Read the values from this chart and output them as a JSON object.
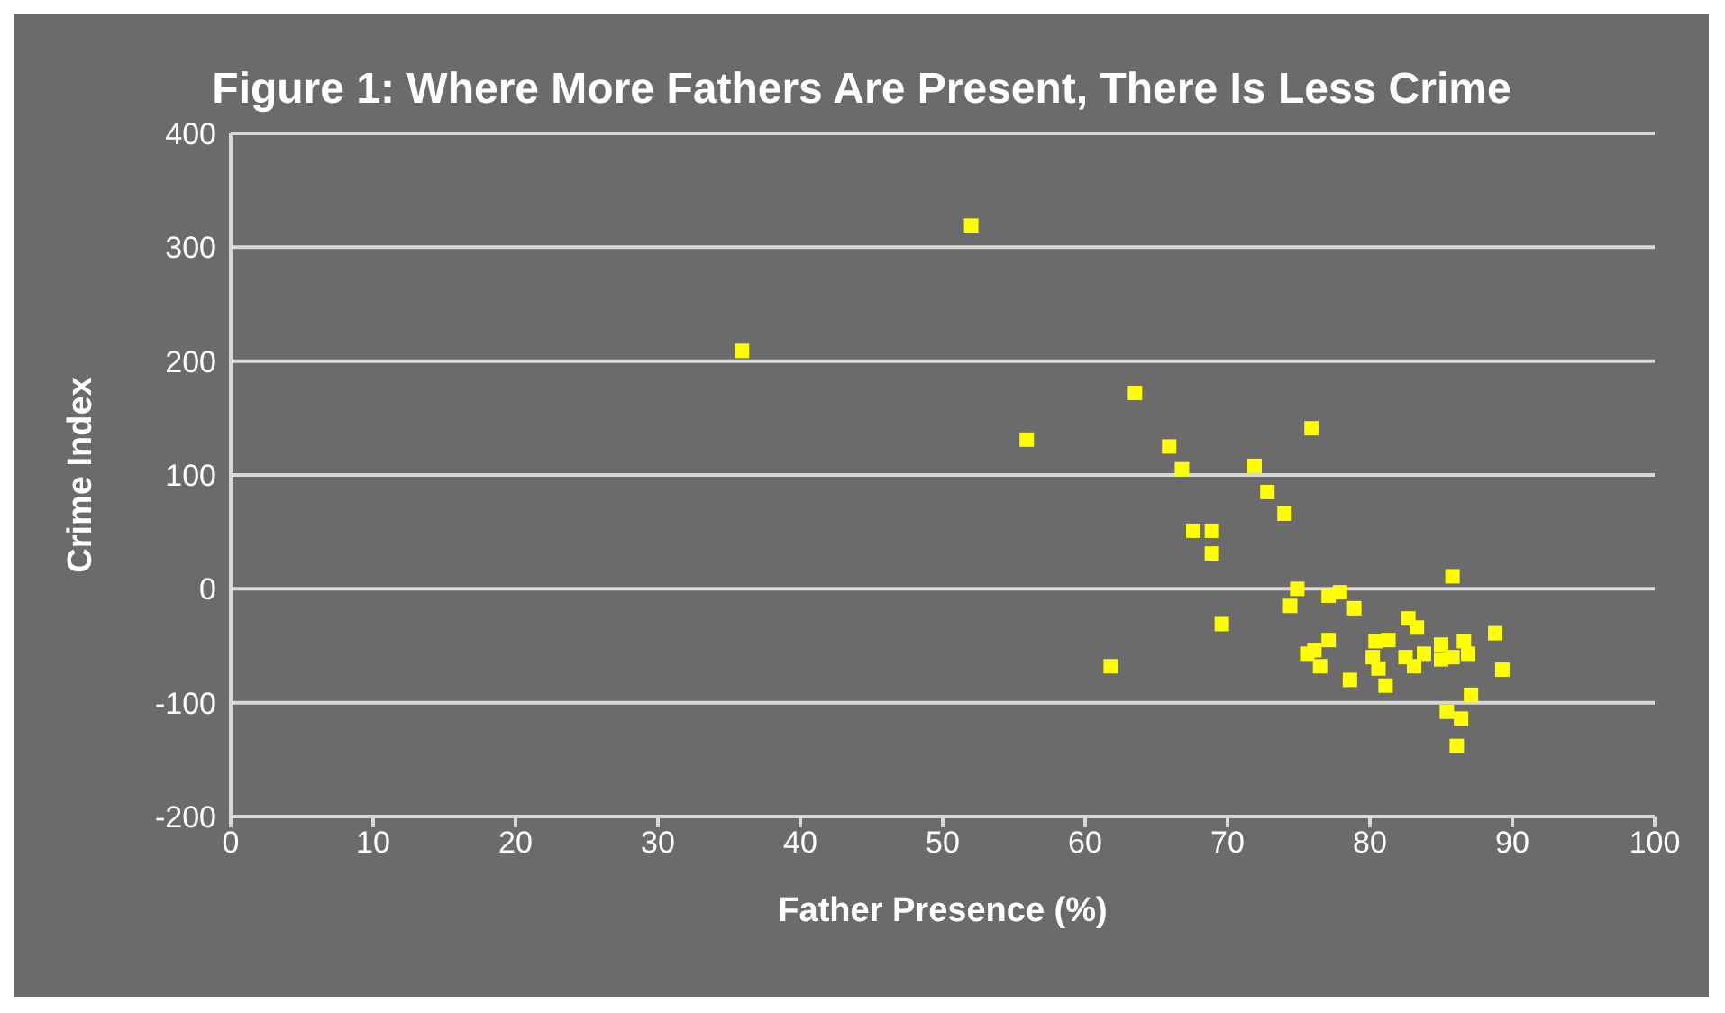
{
  "chart_data": {
    "type": "scatter",
    "title": "Figure 1: Where More Fathers Are Present, There Is Less Crime",
    "xlabel": "Father Presence (%)",
    "ylabel": "Crime Index",
    "xlim": [
      0,
      100
    ],
    "xticks": [
      0,
      10,
      20,
      30,
      40,
      50,
      60,
      70,
      80,
      90,
      100
    ],
    "ylim": [
      -200,
      400
    ],
    "yticks": [
      -200,
      -100,
      0,
      100,
      200,
      300,
      400
    ],
    "grid": "y",
    "marker": "square",
    "series": [
      {
        "color": "#ffff00",
        "x": [
          35.9,
          52,
          55.9,
          63.5,
          61.8,
          65.9,
          66.8,
          67.6,
          68.9,
          68.9,
          69.6,
          71.9,
          72.8,
          74,
          75.9,
          74.9,
          74.4,
          77.1,
          77.9,
          78.9,
          85.8,
          82.7,
          83.3,
          77.1,
          76.1,
          75.6,
          76.5,
          78.6,
          80.4,
          81.3,
          80.2,
          80.6,
          81.1,
          82.5,
          83.1,
          83.8,
          85,
          85,
          85.8,
          86.6,
          86.9,
          88.8,
          89.3,
          87.1,
          85.4,
          86.4,
          86.1
        ],
        "values": [
          209,
          319,
          131,
          172,
          -68,
          125,
          105,
          51,
          51,
          31,
          -31,
          108,
          85,
          66,
          141,
          0,
          -15,
          -6,
          -3,
          -17,
          11,
          -26,
          -34,
          -45,
          -54,
          -57,
          -68,
          -80,
          -46,
          -45,
          -60,
          -70,
          -85,
          -60,
          -68,
          -57,
          -49,
          -62,
          -60,
          -46,
          -57,
          -39,
          -71,
          -93,
          -108,
          -114,
          -138
        ]
      }
    ]
  }
}
